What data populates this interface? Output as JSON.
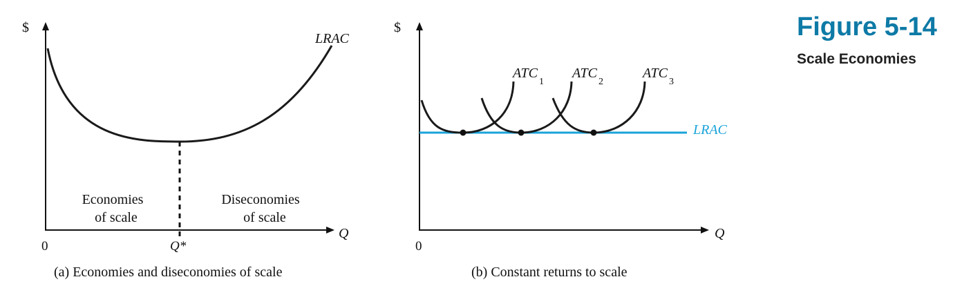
{
  "figure": {
    "number": "Figure 5-14",
    "title": "Scale Economies",
    "accent_color": "#0e7aa6"
  },
  "panel_a": {
    "caption": "(a) Economies and diseconomies of scale",
    "y_axis_label": "$",
    "x_axis_label": "Q",
    "origin_label": "0",
    "tick_label": "Q*",
    "curve_label": "LRAC",
    "left_region": [
      "Economies",
      "of scale"
    ],
    "right_region": [
      "Diseconomies",
      "of scale"
    ]
  },
  "panel_b": {
    "caption": "(b) Constant returns to scale",
    "y_axis_label": "$",
    "x_axis_label": "Q",
    "origin_label": "0",
    "atc_base": "ATC",
    "atc_subscripts": [
      "1",
      "2",
      "3"
    ],
    "lrac_label": "LRAC",
    "lrac_color": "#1aa3d9"
  }
}
